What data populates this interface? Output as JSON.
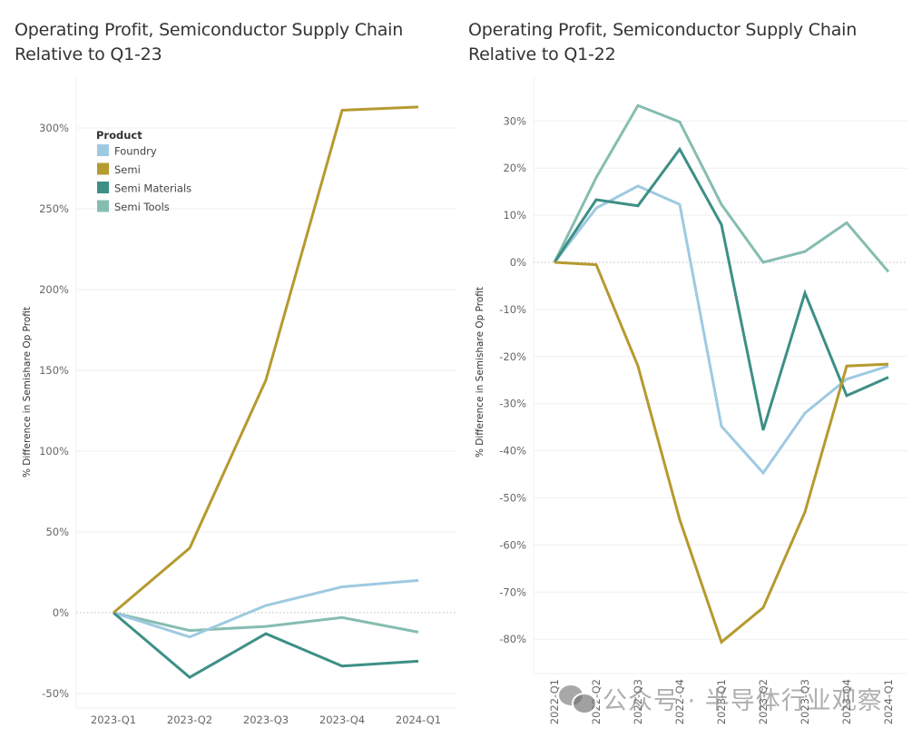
{
  "colors": {
    "Foundry": "#9ecae1",
    "Semi": "#b59a2f",
    "Semi Materials": "#3d8f86",
    "Semi Tools": "#86bdb1",
    "grid": "#efefef",
    "zero_line": "#bdbdbd"
  },
  "watermark": "公众号 · 半导体行业观察",
  "chart_data": [
    {
      "type": "line",
      "title": "Operating Profit, Semiconductor Supply Chain",
      "subtitle": "Relative to Q1-23",
      "xlabel": "",
      "ylabel": "% Difference in Semishare Op Profit",
      "ylim": [
        -55,
        330
      ],
      "yticks": [
        -50,
        0,
        50,
        100,
        150,
        200,
        250,
        300
      ],
      "ytick_labels": [
        "-50%",
        "0%",
        "50%",
        "100%",
        "150%",
        "200%",
        "250%",
        "300%"
      ],
      "x": [
        "2023-Q1",
        "2023-Q2",
        "2023-Q3",
        "2023-Q4",
        "2024-Q1"
      ],
      "grid": true,
      "legend": {
        "title": "Product",
        "placement": "top-left",
        "entries": [
          "Foundry",
          "Semi",
          "Semi Materials",
          "Semi Tools"
        ]
      },
      "series": [
        {
          "name": "Foundry",
          "values": [
            0,
            -15,
            4.5,
            16,
            20
          ]
        },
        {
          "name": "Semi",
          "values": [
            0,
            40,
            144,
            311,
            313
          ]
        },
        {
          "name": "Semi Materials",
          "values": [
            0,
            -40,
            -13,
            -33,
            -30
          ]
        },
        {
          "name": "Semi Tools",
          "values": [
            0,
            -11,
            -8.5,
            -3,
            -12
          ]
        }
      ]
    },
    {
      "type": "line",
      "title": "Operating Profit, Semiconductor Supply Chain",
      "subtitle": "Relative to Q1-22",
      "xlabel": "",
      "ylabel": "% Difference in Semishare Op Profit",
      "ylim": [
        -87,
        39
      ],
      "yticks": [
        -80,
        -70,
        -60,
        -50,
        -40,
        -30,
        -20,
        -10,
        0,
        10,
        20,
        30
      ],
      "ytick_labels": [
        "-80%",
        "-70%",
        "-60%",
        "-50%",
        "-40%",
        "-30%",
        "-20%",
        "-10%",
        "0%",
        "10%",
        "20%",
        "30%"
      ],
      "x": [
        "2022-Q1",
        "2022-Q2",
        "2022-Q3",
        "2022-Q4",
        "2023-Q1",
        "2023-Q2",
        "2023-Q3",
        "2023-Q4",
        "2024-Q1"
      ],
      "grid": true,
      "legend": null,
      "series": [
        {
          "name": "Foundry",
          "values": [
            0,
            11.5,
            16.2,
            12.3,
            -34.8,
            -44.7,
            -32,
            -24.8,
            -22
          ]
        },
        {
          "name": "Semi",
          "values": [
            0,
            -0.5,
            -22,
            -54.6,
            -80.6,
            -73.3,
            -53,
            -22,
            -21.6
          ]
        },
        {
          "name": "Semi Materials",
          "values": [
            0,
            13.3,
            12,
            24,
            8,
            -35.6,
            -6.5,
            -28.3,
            -24.4
          ]
        },
        {
          "name": "Semi Tools",
          "values": [
            0,
            18,
            33.3,
            29.8,
            12.3,
            0,
            2.3,
            8.4,
            -2
          ]
        }
      ]
    }
  ]
}
